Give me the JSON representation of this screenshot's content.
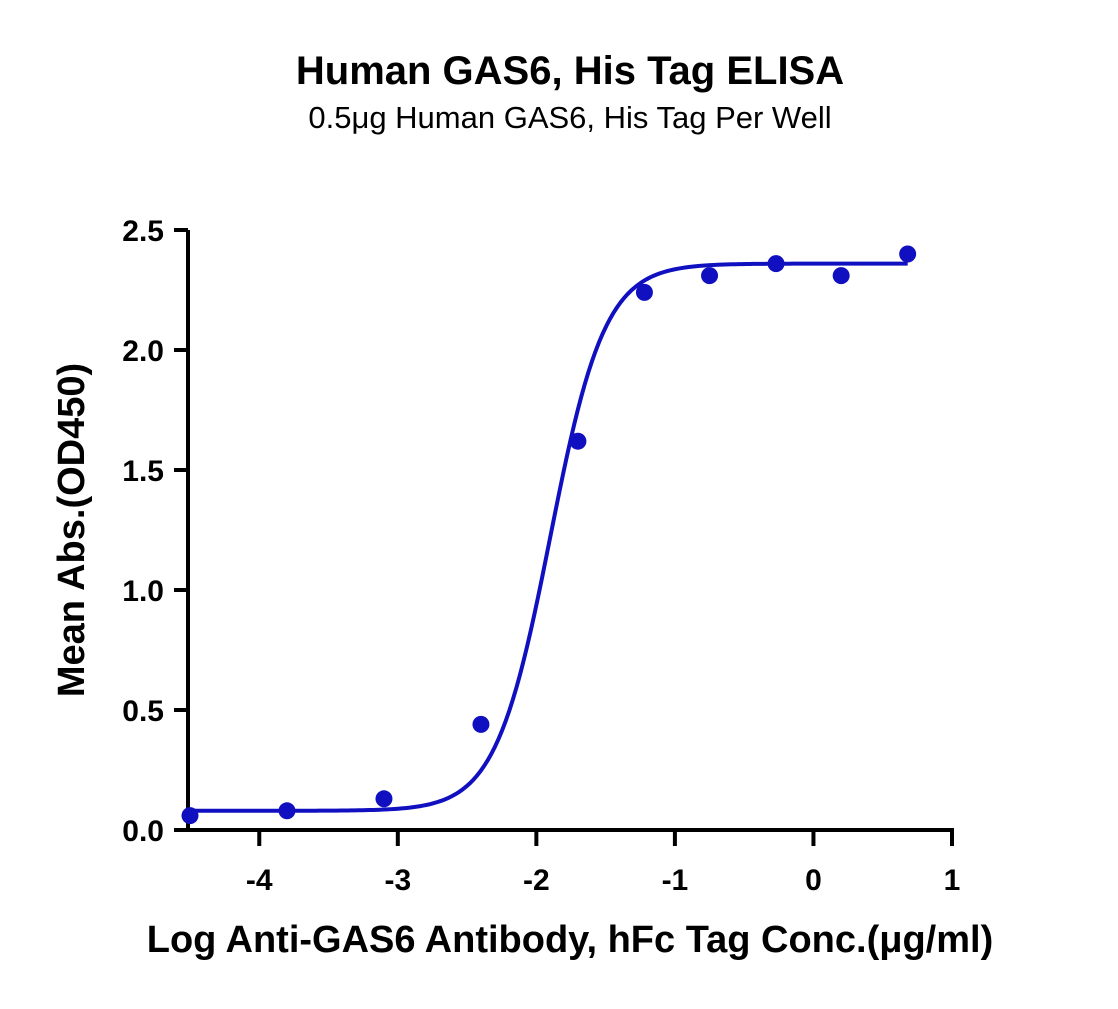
{
  "chart_data": {
    "type": "scatter",
    "title": "Human GAS6, His Tag ELISA",
    "subtitle": "0.5μg Human GAS6, His Tag Per Well",
    "xlabel": "Log Anti-GAS6 Antibody, hFc Tag Conc.(μg/ml)",
    "ylabel": "Mean Abs.(OD450)",
    "xlim": [
      -4.5,
      1
    ],
    "ylim": [
      0,
      2.5
    ],
    "xticks": [
      -4,
      -3,
      -2,
      -1,
      0,
      1
    ],
    "xtick_labels": [
      "-4",
      "-3",
      "-2",
      "-1",
      "0",
      "1"
    ],
    "yticks": [
      0,
      0.5,
      1,
      1.5,
      2,
      2.5
    ],
    "ytick_labels": [
      "0.0",
      "0.5",
      "1.0",
      "1.5",
      "2.0",
      "2.5"
    ],
    "grid": false,
    "color": "#1010C0",
    "series": [
      {
        "points": [
          {
            "x": -4.5,
            "y": 0.06
          },
          {
            "x": -3.8,
            "y": 0.08
          },
          {
            "x": -3.1,
            "y": 0.13
          },
          {
            "x": -2.4,
            "y": 0.44
          },
          {
            "x": -1.7,
            "y": 1.62
          },
          {
            "x": -1.22,
            "y": 2.24
          },
          {
            "x": -0.75,
            "y": 2.31
          },
          {
            "x": -0.27,
            "y": 2.36
          },
          {
            "x": 0.2,
            "y": 2.31
          },
          {
            "x": 0.68,
            "y": 2.4
          }
        ],
        "fit": {
          "model": "4PL",
          "bottom": 0.08,
          "top": 2.36,
          "logEC50": -1.9,
          "hill": 2.2,
          "x_range": [
            -4.5,
            0.68
          ]
        }
      }
    ]
  }
}
